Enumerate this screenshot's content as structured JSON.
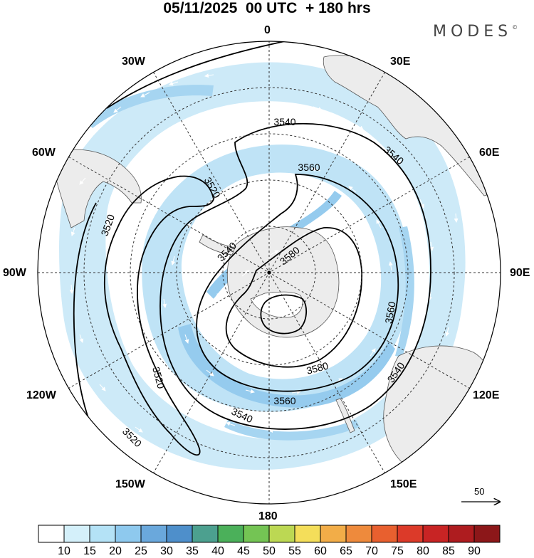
{
  "title": "05/11/2025  00 UTC  + 180 hrs",
  "brand": "MODES",
  "brand_mark": "©",
  "longitude_labels": {
    "lon_0": "0",
    "lon_30e": "30E",
    "lon_60e": "60E",
    "lon_90e": "90E",
    "lon_120e": "120E",
    "lon_150e": "150E",
    "lon_180": "180",
    "lon_150w": "150W",
    "lon_120w": "120W",
    "lon_90w": "90W",
    "lon_60w": "60W",
    "lon_30w": "30W"
  },
  "contour_labels": [
    {
      "text": "3540"
    },
    {
      "text": "3540"
    },
    {
      "text": "3560"
    },
    {
      "text": "3520"
    },
    {
      "text": "3520"
    },
    {
      "text": "3540"
    },
    {
      "text": "3580"
    },
    {
      "text": "3560"
    },
    {
      "text": "3580"
    },
    {
      "text": "3520"
    },
    {
      "text": "3560"
    },
    {
      "text": "3540"
    },
    {
      "text": "3540"
    },
    {
      "text": "3520"
    }
  ],
  "reference_vector": "50",
  "colorbar": {
    "ticks": [
      "10",
      "15",
      "20",
      "25",
      "30",
      "35",
      "40",
      "45",
      "50",
      "55",
      "60",
      "65",
      "70",
      "75",
      "80",
      "85",
      "90"
    ],
    "colors": [
      "#ffffff",
      "#d4f0fa",
      "#b4e2f6",
      "#8ec9ee",
      "#6aa8dc",
      "#4e8fcb",
      "#4ca08f",
      "#4bb05a",
      "#74c454",
      "#bcd853",
      "#f4de5a",
      "#f2ad48",
      "#ee8a3c",
      "#e8602f",
      "#dc3a29",
      "#c82424",
      "#ae1c1f",
      "#8c1719"
    ]
  },
  "map": {
    "land_color": "#ececec",
    "coast_color": "#555555",
    "wind_light_color": "#d6eefa",
    "wind_mid_color": "#a9d8f2",
    "wind_strong_color": "#80bce6",
    "grid_color": "#333333",
    "contour_color": "#000000"
  }
}
